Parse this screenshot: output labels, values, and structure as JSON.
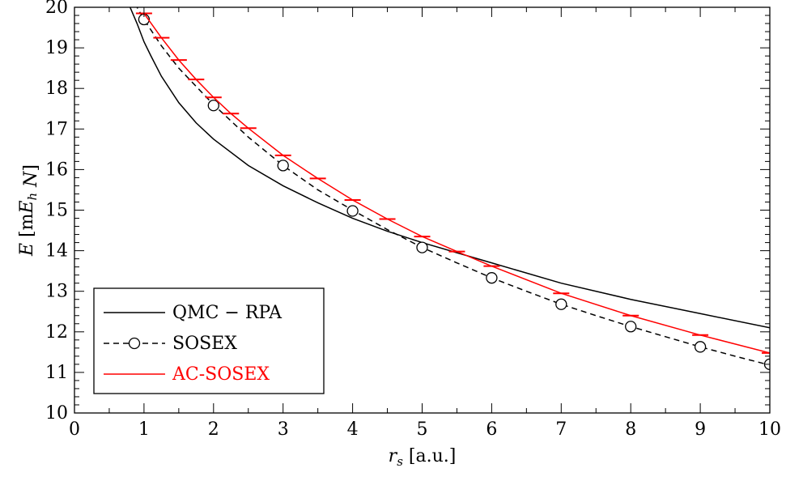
{
  "chart_data": {
    "type": "line",
    "xlabel_var": "r",
    "xlabel_sub": "s",
    "xlabel_unit": " [a.u.]",
    "ylabel_var": "E",
    "ylabel_pre": " [m",
    "ylabel_mid": "E",
    "ylabel_sub": "h",
    "ylabel_post": " N]",
    "xlim": [
      0,
      10
    ],
    "ylim": [
      10,
      20
    ],
    "xticks": [
      "0",
      "1",
      "2",
      "3",
      "4",
      "5",
      "6",
      "7",
      "8",
      "9",
      "10"
    ],
    "yticks": [
      "10",
      "11",
      "12",
      "13",
      "14",
      "15",
      "16",
      "17",
      "18",
      "19",
      "20"
    ],
    "grid": false,
    "legend_position": "bottom-left",
    "series": [
      {
        "name": "QMC − RPA",
        "color": "#000000",
        "style": "solid",
        "marker": "none",
        "x": [
          0.8,
          0.9,
          1.0,
          1.1,
          1.25,
          1.5,
          1.75,
          2.0,
          2.5,
          3.0,
          3.5,
          4.0,
          4.5,
          5.0,
          5.5,
          6.0,
          7.0,
          8.0,
          9.0,
          10.0
        ],
        "y": [
          20.0,
          19.6,
          19.15,
          18.8,
          18.3,
          17.65,
          17.15,
          16.75,
          16.1,
          15.6,
          15.18,
          14.8,
          14.48,
          14.2,
          13.95,
          13.7,
          13.2,
          12.8,
          12.45,
          12.1
        ]
      },
      {
        "name": "SOSEX",
        "color": "#000000",
        "style": "dashed",
        "marker": "circle",
        "x": [
          0.8,
          0.9,
          1.0,
          1.25,
          1.5,
          2.0,
          2.5,
          3.0,
          3.5,
          4.0,
          4.5,
          5.0,
          5.5,
          6.0,
          6.5,
          7.0,
          7.5,
          8.0,
          8.5,
          9.0,
          9.5,
          10.0
        ],
        "y": [
          20.3,
          20.0,
          19.7,
          19.05,
          18.5,
          17.6,
          16.8,
          16.1,
          15.5,
          15.0,
          14.52,
          14.08,
          13.7,
          13.33,
          13.0,
          12.68,
          12.4,
          12.13,
          11.88,
          11.63,
          11.4,
          11.18
        ],
        "markers_x": [
          1,
          2,
          3,
          4,
          5,
          6,
          7,
          8,
          9,
          10
        ],
        "markers_y": [
          19.7,
          17.58,
          16.1,
          14.98,
          14.08,
          13.33,
          12.68,
          12.13,
          11.63,
          11.2
        ]
      },
      {
        "name": "AC-SOSEX",
        "color": "#ff0000",
        "style": "solid",
        "marker": "hbar",
        "x": [
          1.0,
          1.25,
          1.5,
          1.75,
          2.0,
          2.25,
          2.5,
          3.0,
          3.5,
          4.0,
          4.5,
          5.0,
          5.5,
          6.0,
          7.0,
          8.0,
          9.0,
          10.0
        ],
        "y": [
          19.85,
          19.25,
          18.7,
          18.22,
          17.78,
          17.38,
          17.02,
          16.35,
          15.78,
          15.25,
          14.78,
          14.35,
          13.98,
          13.62,
          12.95,
          12.4,
          11.92,
          11.48
        ],
        "markers_x": [
          1.0,
          1.25,
          1.5,
          1.75,
          2.0,
          2.25,
          2.5,
          3.0,
          3.5,
          4.0,
          4.5,
          5.0,
          5.5,
          6.0,
          7.0,
          8.0,
          9.0,
          10.0
        ],
        "markers_y": [
          19.85,
          19.25,
          18.7,
          18.22,
          17.78,
          17.38,
          17.02,
          16.35,
          15.78,
          15.25,
          14.78,
          14.35,
          13.98,
          13.62,
          12.95,
          12.4,
          11.92,
          11.48
        ]
      }
    ]
  }
}
